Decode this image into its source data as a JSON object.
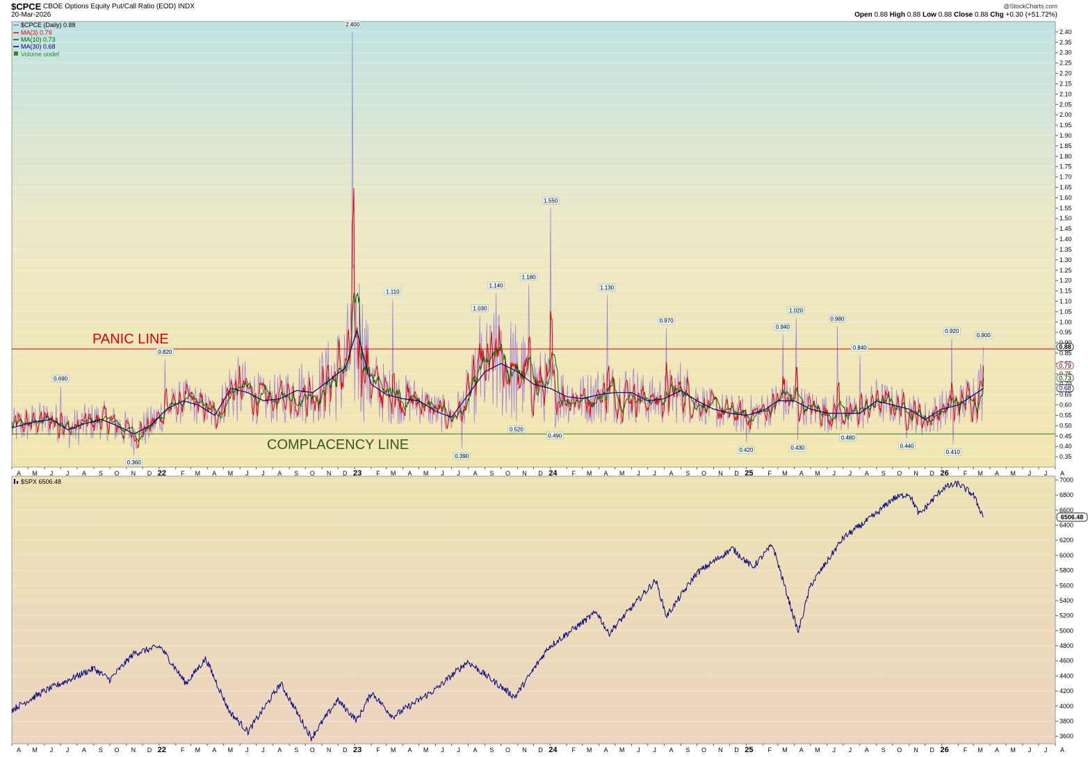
{
  "header": {
    "symbol": "$CPCE",
    "name": "CBOE Options Equity Put/Call Ratio (EOD)",
    "exchange": "INDX",
    "date": "20-Mar-2026",
    "credit": "@StockCharts.com",
    "open_label": "Open",
    "open": "0.88",
    "high_label": "High",
    "high": "0.88",
    "low_label": "Low",
    "low": "0.88",
    "close_label": "Close",
    "close": "0.88",
    "chg_label": "Chg",
    "chg": "+0.30 (+51.72%)"
  },
  "legend": [
    {
      "text": "$CPCE (Daily) 0.88",
      "color": "#9370DB"
    },
    {
      "text": "MA(3) 0.79",
      "color": "#E00000"
    },
    {
      "text": "MA(10) 0.73",
      "color": "#006400"
    },
    {
      "text": "MA(30) 0.68",
      "color": "#000080"
    },
    {
      "text": "Volume undef",
      "color": "#2E8B2E"
    }
  ],
  "annotations": {
    "panic": "PANIC LINE",
    "complacency": "COMPLACENCY LINE"
  },
  "spx_legend": "$SPX 6506.48",
  "colors": {
    "cpce": "#9370DB",
    "ma3": "#E00000",
    "ma10": "#006400",
    "ma30": "#000080",
    "spx": "#000080",
    "panic": "#E00000",
    "complacency": "#2E7D2E"
  },
  "chart_data": [
    {
      "type": "line",
      "title": "$CPCE CBOE Options Equity Put/Call Ratio (EOD)",
      "ylim": [
        0.3,
        2.45
      ],
      "yticks": [
        2.4,
        2.35,
        2.3,
        2.25,
        2.2,
        2.15,
        2.1,
        2.05,
        2.0,
        1.95,
        1.9,
        1.85,
        1.8,
        1.75,
        1.7,
        1.65,
        1.6,
        1.55,
        1.5,
        1.45,
        1.4,
        1.35,
        1.3,
        1.25,
        1.2,
        1.15,
        1.1,
        1.05,
        1.0,
        0.95,
        0.9,
        0.85,
        0.8,
        0.75,
        0.7,
        0.65,
        0.6,
        0.55,
        0.5,
        0.45,
        0.4,
        0.35
      ],
      "x_labels": [
        "A",
        "M",
        "J",
        "J",
        "A",
        "S",
        "O",
        "N",
        "D",
        "22",
        "F",
        "M",
        "A",
        "M",
        "J",
        "J",
        "A",
        "S",
        "O",
        "N",
        "D",
        "23",
        "F",
        "M",
        "A",
        "M",
        "J",
        "J",
        "A",
        "S",
        "O",
        "N",
        "D",
        "24",
        "F",
        "M",
        "A",
        "M",
        "J",
        "J",
        "A",
        "S",
        "O",
        "N",
        "D",
        "25",
        "F",
        "M",
        "A",
        "M",
        "J",
        "J",
        "A",
        "S",
        "O",
        "N",
        "D",
        "26",
        "F",
        "M",
        "A",
        "M",
        "J",
        "J",
        "A"
      ],
      "x_range": [
        "2021-04",
        "2026-08"
      ],
      "panic_line": 0.87,
      "complacency_line": 0.46,
      "last_values": {
        "cpce": 0.88,
        "ma3": 0.79,
        "ma10": 0.73,
        "ma30": 0.68
      },
      "peak_labels": [
        {
          "date": "2021-07-01",
          "value": 0.69
        },
        {
          "date": "2021-11-15",
          "value": 0.36
        },
        {
          "date": "2022-01-12",
          "value": 0.82
        },
        {
          "date": "2022-12-28",
          "value": 2.4
        },
        {
          "date": "2023-03-13",
          "value": 1.11
        },
        {
          "date": "2023-07-20",
          "value": 0.39
        },
        {
          "date": "2023-08-23",
          "value": 1.03
        },
        {
          "date": "2023-09-22",
          "value": 1.14
        },
        {
          "date": "2023-10-30",
          "value": 0.52
        },
        {
          "date": "2023-11-22",
          "value": 1.18
        },
        {
          "date": "2024-01-10",
          "value": 0.49
        },
        {
          "date": "2024-01-02",
          "value": 1.55
        },
        {
          "date": "2024-04-16",
          "value": 1.13
        },
        {
          "date": "2024-08-05",
          "value": 0.97
        },
        {
          "date": "2025-01-01",
          "value": 0.42
        },
        {
          "date": "2025-03-10",
          "value": 0.94
        },
        {
          "date": "2025-04-04",
          "value": 1.02
        },
        {
          "date": "2025-04-07",
          "value": 0.43
        },
        {
          "date": "2025-06-20",
          "value": 0.98
        },
        {
          "date": "2025-07-10",
          "value": 0.48
        },
        {
          "date": "2025-08-01",
          "value": 0.84
        },
        {
          "date": "2025-10-28",
          "value": 0.44
        },
        {
          "date": "2026-01-20",
          "value": 0.92
        },
        {
          "date": "2026-01-22",
          "value": 0.41
        },
        {
          "date": "2026-03-20",
          "value": 0.9
        }
      ],
      "series": [
        {
          "name": "MA(30)",
          "x": [
            "2021-04-01",
            "2021-05-15",
            "2021-06-15",
            "2021-07-15",
            "2021-08-15",
            "2021-09-15",
            "2021-10-15",
            "2021-11-15",
            "2021-12-15",
            "2022-01-15",
            "2022-02-15",
            "2022-03-15",
            "2022-04-15",
            "2022-05-15",
            "2022-06-15",
            "2022-07-15",
            "2022-08-15",
            "2022-09-15",
            "2022-10-15",
            "2022-11-15",
            "2022-12-15",
            "2023-01-05",
            "2023-02-01",
            "2023-03-01",
            "2023-04-01",
            "2023-05-01",
            "2023-06-01",
            "2023-07-01",
            "2023-08-01",
            "2023-09-01",
            "2023-10-01",
            "2023-11-01",
            "2023-12-01",
            "2024-01-01",
            "2024-02-01",
            "2024-03-01",
            "2024-04-01",
            "2024-05-01",
            "2024-06-01",
            "2024-07-01",
            "2024-08-01",
            "2024-09-01",
            "2024-10-01",
            "2024-11-01",
            "2024-12-01",
            "2025-01-01",
            "2025-02-01",
            "2025-03-01",
            "2025-04-01",
            "2025-05-01",
            "2025-06-01",
            "2025-07-01",
            "2025-08-01",
            "2025-09-01",
            "2025-10-01",
            "2025-11-01",
            "2025-12-01",
            "2026-01-01",
            "2026-02-01",
            "2026-03-20"
          ],
          "values": [
            0.49,
            0.52,
            0.53,
            0.48,
            0.51,
            0.53,
            0.5,
            0.46,
            0.5,
            0.58,
            0.62,
            0.6,
            0.55,
            0.68,
            0.66,
            0.62,
            0.63,
            0.67,
            0.66,
            0.72,
            0.78,
            0.96,
            0.7,
            0.65,
            0.63,
            0.62,
            0.57,
            0.54,
            0.65,
            0.76,
            0.8,
            0.76,
            0.7,
            0.68,
            0.64,
            0.63,
            0.65,
            0.66,
            0.66,
            0.62,
            0.63,
            0.67,
            0.62,
            0.58,
            0.56,
            0.55,
            0.57,
            0.62,
            0.62,
            0.58,
            0.56,
            0.56,
            0.56,
            0.62,
            0.6,
            0.58,
            0.53,
            0.58,
            0.6,
            0.68
          ]
        },
        {
          "name": "$SPX",
          "x": [
            "2021-04-01",
            "2021-06-01",
            "2021-08-01",
            "2021-09-01",
            "2021-10-01",
            "2021-11-15",
            "2022-01-03",
            "2022-02-20",
            "2022-03-29",
            "2022-05-12",
            "2022-06-16",
            "2022-08-16",
            "2022-10-12",
            "2022-11-30",
            "2023-01-05",
            "2023-02-02",
            "2023-03-13",
            "2023-06-01",
            "2023-07-31",
            "2023-10-27",
            "2023-12-29",
            "2024-03-28",
            "2024-04-19",
            "2024-07-16",
            "2024-08-05",
            "2024-09-30",
            "2024-12-06",
            "2025-01-13",
            "2025-02-19",
            "2025-04-08",
            "2025-05-01",
            "2025-07-01",
            "2025-08-01",
            "2025-09-01",
            "2025-10-01",
            "2025-11-01",
            "2025-11-20",
            "2026-01-05",
            "2026-02-01",
            "2026-03-01",
            "2026-03-20"
          ],
          "values": [
            3950,
            4200,
            4400,
            4500,
            4350,
            4700,
            4790,
            4300,
            4630,
            3930,
            3660,
            4300,
            3580,
            4080,
            3810,
            4180,
            3860,
            4220,
            4590,
            4120,
            4780,
            5250,
            4960,
            5670,
            5190,
            5760,
            6090,
            5840,
            6140,
            4980,
            5600,
            6230,
            6390,
            6550,
            6750,
            6820,
            6540,
            6900,
            6950,
            6800,
            6506.48
          ]
        }
      ]
    },
    {
      "type": "line",
      "title": "$SPX",
      "ylim": [
        3500,
        7050
      ],
      "yticks": [
        7000,
        6800,
        6600,
        6400,
        6200,
        6000,
        5800,
        5600,
        5400,
        5200,
        5000,
        4800,
        4600,
        4400,
        4200,
        4000,
        3800,
        3600
      ],
      "last_value": 6506.48
    }
  ]
}
